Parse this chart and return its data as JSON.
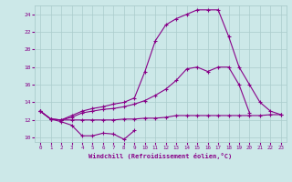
{
  "xlabel": "Windchill (Refroidissement éolien,°C)",
  "bg_color": "#cce8e8",
  "line_color": "#880088",
  "ylim": [
    9.5,
    25.0
  ],
  "xlim": [
    -0.5,
    23.5
  ],
  "yticks": [
    10,
    12,
    14,
    16,
    18,
    20,
    22,
    24
  ],
  "xticks": [
    0,
    1,
    2,
    3,
    4,
    5,
    6,
    7,
    8,
    9,
    10,
    11,
    12,
    13,
    14,
    15,
    16,
    17,
    18,
    19,
    20,
    21,
    22,
    23
  ],
  "line1_y": [
    13.0,
    12.1,
    11.8,
    11.4,
    10.2,
    10.2,
    10.5,
    10.4,
    9.8,
    10.8,
    null,
    null,
    null,
    null,
    null,
    null,
    null,
    null,
    null,
    null,
    null,
    null,
    null,
    null
  ],
  "line2_y": [
    13.0,
    12.1,
    12.0,
    12.0,
    12.0,
    12.0,
    12.0,
    12.0,
    12.1,
    12.1,
    12.2,
    12.2,
    12.3,
    12.5,
    12.5,
    12.5,
    12.5,
    12.5,
    12.5,
    12.5,
    12.5,
    12.5,
    12.6,
    12.6
  ],
  "line3_y": [
    13.0,
    12.1,
    12.0,
    12.3,
    12.8,
    13.0,
    13.2,
    13.3,
    13.5,
    13.8,
    14.2,
    14.8,
    15.5,
    16.5,
    17.8,
    18.0,
    17.5,
    18.0,
    18.0,
    16.0,
    12.8,
    null,
    null,
    null
  ],
  "line4_y": [
    13.0,
    12.1,
    12.0,
    12.5,
    13.0,
    13.3,
    13.5,
    13.8,
    14.0,
    14.5,
    17.5,
    21.0,
    22.8,
    23.5,
    24.0,
    24.5,
    24.5,
    24.5,
    21.5,
    18.0,
    16.0,
    14.0,
    13.0,
    12.6
  ]
}
